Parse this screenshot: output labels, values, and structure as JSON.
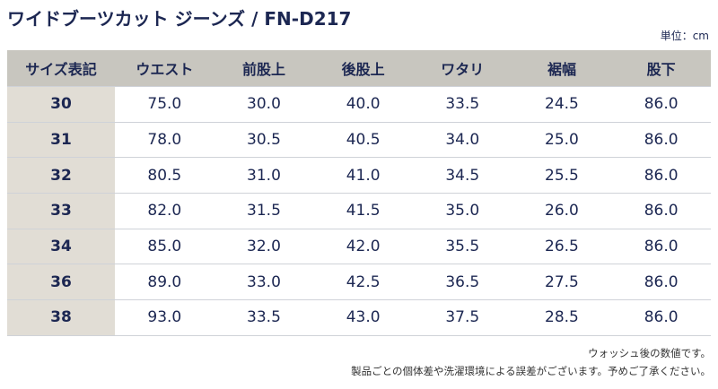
{
  "header": {
    "title": "ワイドブーツカット ジーンズ / FN-D217",
    "unit": "単位：cm"
  },
  "table": {
    "columns": [
      "サイズ表記",
      "ウエスト",
      "前股上",
      "後股上",
      "ワタリ",
      "裾幅",
      "股下"
    ],
    "rows": [
      [
        "30",
        "75.0",
        "30.0",
        "40.0",
        "33.5",
        "24.5",
        "86.0"
      ],
      [
        "31",
        "78.0",
        "30.5",
        "40.5",
        "34.0",
        "25.0",
        "86.0"
      ],
      [
        "32",
        "80.5",
        "31.0",
        "41.0",
        "34.5",
        "25.5",
        "86.0"
      ],
      [
        "33",
        "82.0",
        "31.5",
        "41.5",
        "35.0",
        "26.0",
        "86.0"
      ],
      [
        "34",
        "85.0",
        "32.0",
        "42.0",
        "35.5",
        "26.5",
        "86.0"
      ],
      [
        "36",
        "89.0",
        "33.0",
        "42.5",
        "36.5",
        "27.5",
        "86.0"
      ],
      [
        "38",
        "93.0",
        "33.5",
        "43.0",
        "37.5",
        "28.5",
        "86.0"
      ]
    ]
  },
  "notes": [
    "ウォッシュ後の数値です。",
    "製品ごとの個体差や洗濯環境による誤差がございます。予めご了承ください。"
  ]
}
